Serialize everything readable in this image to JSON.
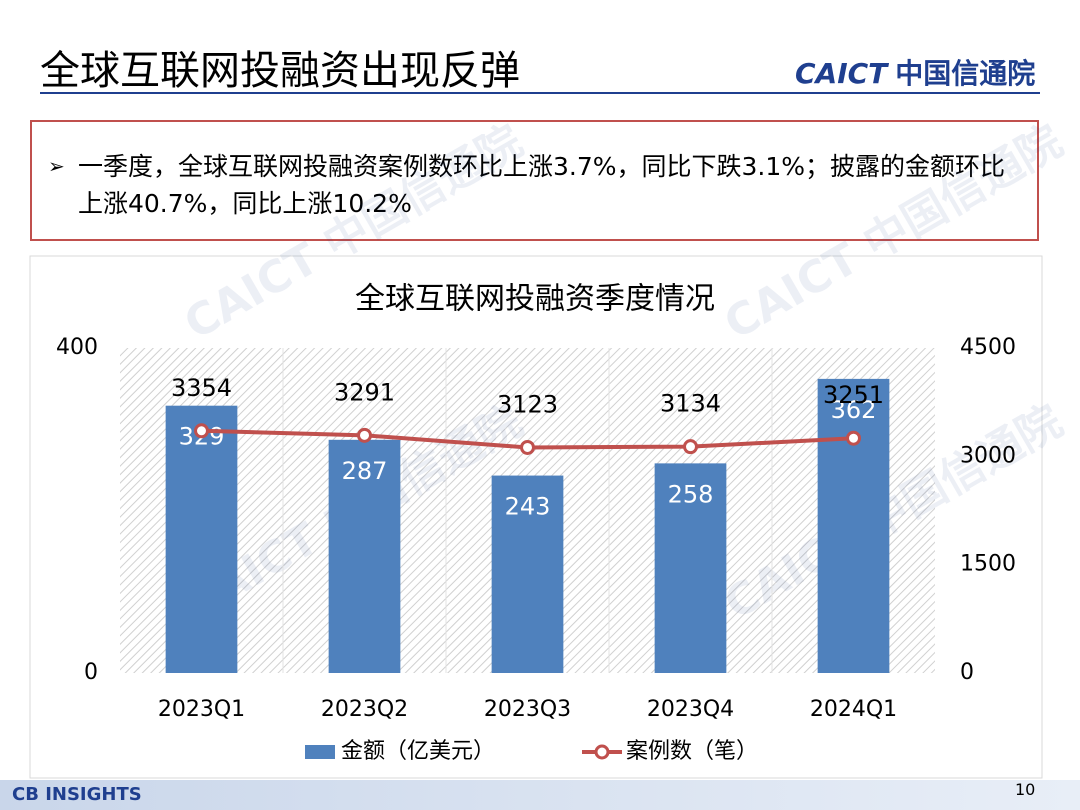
{
  "header": {
    "title": "全球互联网投融资出现反弹",
    "logo_mark": "CAICT",
    "logo_text": "中国信通院"
  },
  "bullet": "一季度，全球互联网投融资案例数环比上涨3.7%，同比下跌3.1%；披露的金额环比上涨40.7%，同比上涨10.2%",
  "watermark": "CAICT 中国信通院",
  "chart_data": {
    "type": "bar",
    "title": "全球互联网投融资季度情况",
    "categories": [
      "2023Q1",
      "2023Q2",
      "2023Q3",
      "2023Q4",
      "2024Q1"
    ],
    "series": [
      {
        "name": "金额（亿美元）",
        "type": "bar",
        "color": "#4f81bd",
        "values": [
          329,
          287,
          243,
          258,
          362
        ]
      },
      {
        "name": "案例数（笔）",
        "type": "line",
        "axis": "y2",
        "color": "#c0504d",
        "values": [
          3354,
          3291,
          3123,
          3134,
          3251
        ]
      }
    ],
    "ylim": [
      0,
      400
    ],
    "yticks": [
      0,
      400
    ],
    "y2lim": [
      0,
      4500
    ],
    "y2ticks": [
      0,
      1500,
      3000,
      4500
    ],
    "legend": "bottom",
    "grid": true
  },
  "footer": {
    "source": "CB INSIGHTS",
    "page": "10"
  }
}
